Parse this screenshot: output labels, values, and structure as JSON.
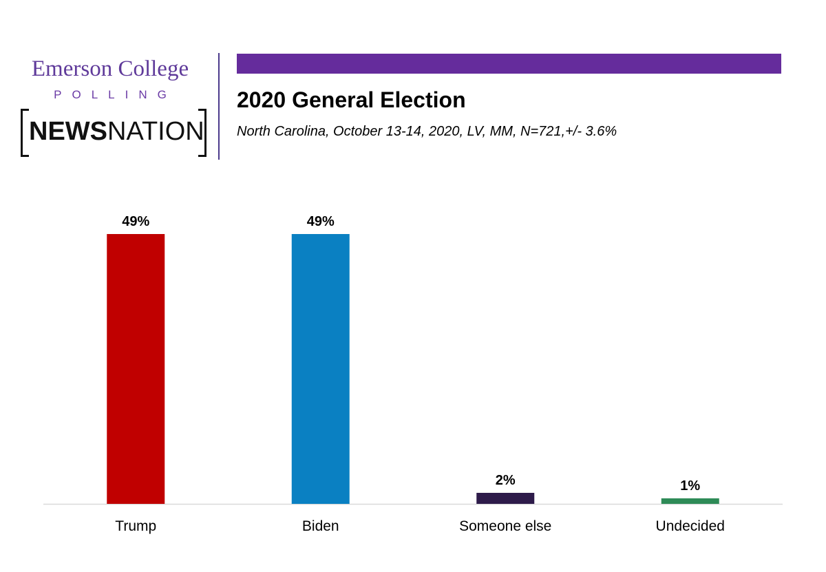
{
  "header": {
    "brand_emerson": "Emerson College",
    "brand_polling": "POLLING",
    "brand_news_bold": "NEWS",
    "brand_news_regular": "NATION",
    "accent_color": "#652c9c",
    "title": "2020 General Election",
    "subtitle": "North Carolina, October 13-14, 2020, LV, MM, N=721,+/-  3.6%"
  },
  "chart_data": {
    "type": "bar",
    "categories": [
      "Trump",
      "Biden",
      "Someone else",
      "Undecided"
    ],
    "values": [
      49,
      49,
      2,
      1
    ],
    "value_labels": [
      "49%",
      "49%",
      "2%",
      "1%"
    ],
    "colors": [
      "#c00000",
      "#0a80c2",
      "#2e1b4a",
      "#2e8b57"
    ],
    "ylim": [
      0,
      50
    ],
    "grid": false,
    "legend": "none"
  }
}
